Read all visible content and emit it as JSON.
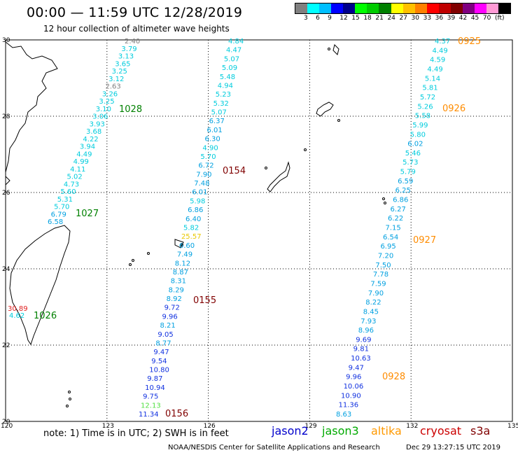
{
  "header": {
    "title": "00:00 — 11:59 UTC 12/28/2019",
    "subtitle": "12 hour collection of altimeter wave heights"
  },
  "legend": {
    "unit": "(ft)",
    "swatch_colors": [
      "#808080",
      "#00ffff",
      "#00bfff",
      "#0000ff",
      "#00008b",
      "#00ff00",
      "#00cc00",
      "#008000",
      "#ffff00",
      "#ffc000",
      "#ff8000",
      "#ff0000",
      "#c00000",
      "#800000",
      "#800080",
      "#ff00ff",
      "#ff9ad5",
      "#000000"
    ],
    "labels": [
      "3",
      "6",
      "9",
      "12",
      "15",
      "18",
      "21",
      "24",
      "27",
      "30",
      "33",
      "36",
      "39",
      "42",
      "45",
      "70"
    ]
  },
  "axes": {
    "lon_labels": [
      "120",
      "123",
      "126",
      "129",
      "132",
      "135"
    ],
    "lat_labels": [
      "30",
      "28",
      "26",
      "24",
      "22",
      "20"
    ]
  },
  "tracks": [
    {
      "id": "track-west",
      "points": [
        {
          "v": "2.40",
          "c": "#808080"
        },
        {
          "v": "3.79",
          "c": "#00ccdd"
        },
        {
          "v": "3.13",
          "c": "#00ccdd"
        },
        {
          "v": "3.65",
          "c": "#00ccdd"
        },
        {
          "v": "3.25",
          "c": "#00ccdd"
        },
        {
          "v": "3.12",
          "c": "#00ccdd"
        },
        {
          "v": "2.63",
          "c": "#808080"
        },
        {
          "v": "3.26",
          "c": "#00ccdd"
        },
        {
          "v": "3.25",
          "c": "#00ccdd"
        },
        {
          "v": "3.10",
          "c": "#00ccdd"
        },
        {
          "v": "3.06",
          "c": "#00ccdd"
        },
        {
          "v": "3.93",
          "c": "#00ccdd"
        },
        {
          "v": "3.68",
          "c": "#00ccdd"
        },
        {
          "v": "4.22",
          "c": "#00ccdd"
        },
        {
          "v": "3.94",
          "c": "#00ccdd"
        },
        {
          "v": "4.49",
          "c": "#00ccdd"
        },
        {
          "v": "4.99",
          "c": "#00ccdd"
        },
        {
          "v": "4.11",
          "c": "#00ccdd"
        },
        {
          "v": "5.02",
          "c": "#00ccdd"
        },
        {
          "v": "4.73",
          "c": "#00ccdd"
        },
        {
          "v": "5.60",
          "c": "#00ccdd"
        },
        {
          "v": "5.31",
          "c": "#00ccdd"
        },
        {
          "v": "5.70",
          "c": "#00ccdd"
        },
        {
          "v": "6.79",
          "c": "#00a0e0"
        },
        {
          "v": "6.58",
          "c": "#00a0e0"
        }
      ]
    },
    {
      "id": "track-central",
      "points": [
        {
          "v": "4.84",
          "c": "#00ccdd"
        },
        {
          "v": "4.47",
          "c": "#00ccdd"
        },
        {
          "v": "5.07",
          "c": "#00ccdd"
        },
        {
          "v": "5.09",
          "c": "#00ccdd"
        },
        {
          "v": "5.48",
          "c": "#00ccdd"
        },
        {
          "v": "4.94",
          "c": "#00ccdd"
        },
        {
          "v": "5.23",
          "c": "#00ccdd"
        },
        {
          "v": "5.32",
          "c": "#00ccdd"
        },
        {
          "v": "5.07",
          "c": "#00ccdd"
        },
        {
          "v": "6.37",
          "c": "#00a0e0"
        },
        {
          "v": "6.01",
          "c": "#00a0e0"
        },
        {
          "v": "6.30",
          "c": "#00a0e0"
        },
        {
          "v": "4.90",
          "c": "#00ccdd"
        },
        {
          "v": "5.70",
          "c": "#00ccdd"
        },
        {
          "v": "6.72",
          "c": "#00a0e0"
        },
        {
          "v": "7.90",
          "c": "#00a0e0"
        },
        {
          "v": "7.48",
          "c": "#00a0e0"
        },
        {
          "v": "6.01",
          "c": "#00a0e0"
        },
        {
          "v": "5.98",
          "c": "#00ccdd"
        },
        {
          "v": "6.86",
          "c": "#00a0e0"
        },
        {
          "v": "6.40",
          "c": "#00a0e0"
        },
        {
          "v": "5.82",
          "c": "#00ccdd"
        },
        {
          "v": "25.57",
          "c": "#e8c800"
        },
        {
          "v": "6.60",
          "c": "#00a0e0"
        },
        {
          "v": "7.49",
          "c": "#00a0e0"
        },
        {
          "v": "8.12",
          "c": "#00a0e0"
        },
        {
          "v": "8.87",
          "c": "#00a0e0"
        },
        {
          "v": "8.31",
          "c": "#00a0e0"
        },
        {
          "v": "8.29",
          "c": "#00a0e0"
        },
        {
          "v": "8.92",
          "c": "#00a0e0"
        },
        {
          "v": "9.72",
          "c": "#1030e0"
        },
        {
          "v": "9.96",
          "c": "#1030e0"
        },
        {
          "v": "8.21",
          "c": "#00a0e0"
        },
        {
          "v": "9.05",
          "c": "#1030e0"
        },
        {
          "v": "8.77",
          "c": "#00a0e0"
        },
        {
          "v": "9.47",
          "c": "#1030e0"
        },
        {
          "v": "9.54",
          "c": "#1030e0"
        },
        {
          "v": "10.80",
          "c": "#1030e0"
        },
        {
          "v": "9.87",
          "c": "#1030e0"
        },
        {
          "v": "10.94",
          "c": "#1030e0"
        },
        {
          "v": "9.75",
          "c": "#1030e0"
        },
        {
          "v": "12.13",
          "c": "#50e040"
        },
        {
          "v": "11.34",
          "c": "#1030e0"
        }
      ]
    },
    {
      "id": "track-east",
      "points": [
        {
          "v": "4.37",
          "c": "#00ccdd"
        },
        {
          "v": "4.49",
          "c": "#00ccdd"
        },
        {
          "v": "4.59",
          "c": "#00ccdd"
        },
        {
          "v": "4.49",
          "c": "#00ccdd"
        },
        {
          "v": "5.14",
          "c": "#00ccdd"
        },
        {
          "v": "5.81",
          "c": "#00ccdd"
        },
        {
          "v": "5.72",
          "c": "#00ccdd"
        },
        {
          "v": "5.26",
          "c": "#00ccdd"
        },
        {
          "v": "5.58",
          "c": "#00ccdd"
        },
        {
          "v": "5.99",
          "c": "#00ccdd"
        },
        {
          "v": "5.80",
          "c": "#00ccdd"
        },
        {
          "v": "6.02",
          "c": "#00a0e0"
        },
        {
          "v": "5.46",
          "c": "#00ccdd"
        },
        {
          "v": "5.73",
          "c": "#00ccdd"
        },
        {
          "v": "5.79",
          "c": "#00ccdd"
        },
        {
          "v": "6.59",
          "c": "#00a0e0"
        },
        {
          "v": "6.25",
          "c": "#00a0e0"
        },
        {
          "v": "6.86",
          "c": "#00a0e0"
        },
        {
          "v": "6.27",
          "c": "#00a0e0"
        },
        {
          "v": "6.22",
          "c": "#00a0e0"
        },
        {
          "v": "7.15",
          "c": "#00a0e0"
        },
        {
          "v": "6.54",
          "c": "#00a0e0"
        },
        {
          "v": "6.95",
          "c": "#00a0e0"
        },
        {
          "v": "7.20",
          "c": "#00a0e0"
        },
        {
          "v": "7.50",
          "c": "#00a0e0"
        },
        {
          "v": "7.78",
          "c": "#00a0e0"
        },
        {
          "v": "7.59",
          "c": "#00a0e0"
        },
        {
          "v": "7.90",
          "c": "#00a0e0"
        },
        {
          "v": "8.22",
          "c": "#00a0e0"
        },
        {
          "v": "8.45",
          "c": "#00a0e0"
        },
        {
          "v": "7.93",
          "c": "#00a0e0"
        },
        {
          "v": "8.96",
          "c": "#00a0e0"
        },
        {
          "v": "9.69",
          "c": "#1030e0"
        },
        {
          "v": "9.81",
          "c": "#1030e0"
        },
        {
          "v": "10.63",
          "c": "#1030e0"
        },
        {
          "v": "9.47",
          "c": "#1030e0"
        },
        {
          "v": "9.96",
          "c": "#1030e0"
        },
        {
          "v": "10.06",
          "c": "#1030e0"
        },
        {
          "v": "10.90",
          "c": "#1030e0"
        },
        {
          "v": "11.36",
          "c": "#1030e0"
        },
        {
          "v": "8.63",
          "c": "#00a0e0"
        }
      ]
    },
    {
      "id": "track-taiwan",
      "points": [
        {
          "v": "30.89",
          "c": "#e02020"
        },
        {
          "v": "4.62",
          "c": "#00ccdd"
        }
      ]
    }
  ],
  "time_labels": [
    {
      "t": "1028",
      "c": "#008000"
    },
    {
      "t": "1027",
      "c": "#008000"
    },
    {
      "t": "1026",
      "c": "#008000"
    },
    {
      "t": "0154",
      "c": "#800000"
    },
    {
      "t": "0155",
      "c": "#800000"
    },
    {
      "t": "0156",
      "c": "#800000"
    },
    {
      "t": "0925",
      "c": "#ff8c00"
    },
    {
      "t": "0926",
      "c": "#ff8c00"
    },
    {
      "t": "0927",
      "c": "#ff8c00"
    },
    {
      "t": "0928",
      "c": "#ff8c00"
    }
  ],
  "footer": {
    "note": "note: 1) Time is in UTC; 2) SWH is in feet",
    "satellites": [
      {
        "name": "jason2",
        "c": "#0000cc"
      },
      {
        "name": "jason3",
        "c": "#00aa00"
      },
      {
        "name": "altika",
        "c": "#ff9900"
      },
      {
        "name": "cryosat",
        "c": "#cc0000"
      },
      {
        "name": "s3a",
        "c": "#800000"
      }
    ],
    "credit": "NOAA/NESDIS Center for Satellite Applications and Research",
    "date": "Dec 29 13:27:15 UTC 2019"
  }
}
